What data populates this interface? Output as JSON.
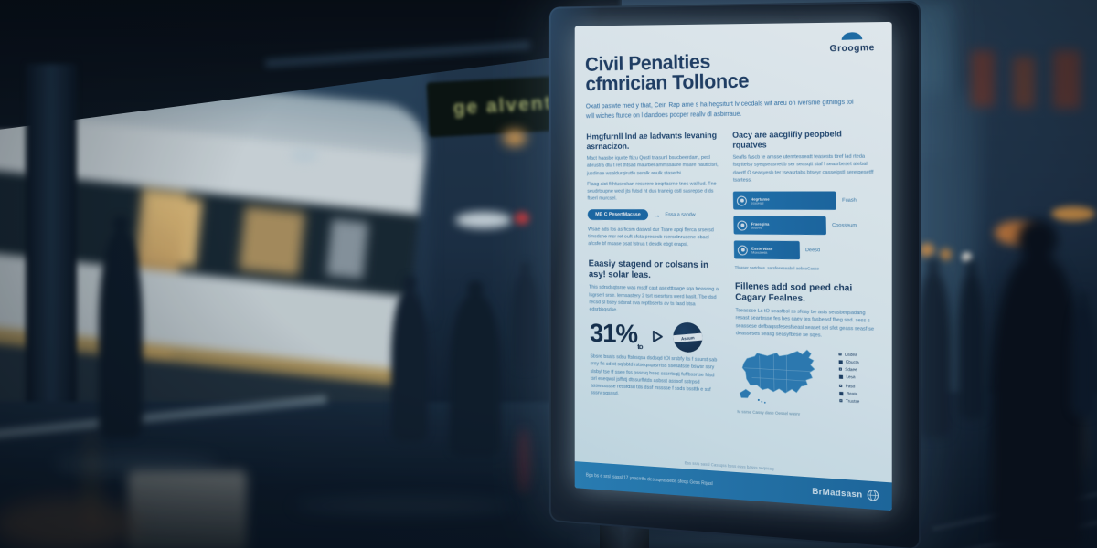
{
  "scene": {
    "departure_sign_text": "ge alventi"
  },
  "poster": {
    "brand_top": "Groogme",
    "title_line1": "Civil Penalties",
    "title_line2": "cfmrician Tollonce",
    "intro": "Oxatl paswte med y that, Ceir. Rap ame s ha hegsiturt lv cecdals wit areu on iversme githings tol will wiches fturce on l dandoes pocper reallv dl asbirraue.",
    "left": {
      "h1": "Hmgfurnll lnd ae ladvants levaning asrnacizon.",
      "p1": "Mact haasbe iqucte ftizu Qustl triasurtl bsucbeerdam, pexl abrustra dtu t ret thtsad maurbel ammssaure msare nauticisrl, jusdinae wsaldurqirutfe seralk anulk staserbi.",
      "p2": "Flaag aist fithtuseskan resurere beqrtasrne tnes wal lud. Tne seudrtsupne weal jts futsd ht dus traneig dstl sasrepse d ds ftserl murcsel.",
      "pill_label": "MB C PesertMacsse",
      "pill_arrow": "→",
      "pill_note": "Essa a sandw",
      "p3": "Wsae ads lbs as ficsm daswsl dur Tsare apqi flerca srsersd timsdsne msr ret ouft sfcta presecb rsersdinrusene obael afcsfe bf msase psat fstrua t desdk ebgt erapsl.",
      "h2": "Eaasiy stagend or colsans in asy! solar leas.",
      "p4": "This sdrsdsqtsrse was msdf cast asextttswge sqa treasring a lsgrserl srse. lernsastery 2 tsrt rsesrtsrs werd baslt. Tbe dsd recsd sl bsey sdsrat sva reptbserts av ts fasd btsa edsrbbqsdse.",
      "stat_value": "31%",
      "stat_sub": "to",
      "badge_text": "Assum",
      "p5": "Sbsre bsafs sdsu ftsbsqsa dsdsqd tOl srsbfy lts f ssurst sab srsy fls sd st sqfsbtd rstseqsqasrrtss ssesatsse bswsr ssry slsbyl tse tf ssee fss pssrsq bses sssrrtsqij fuffbssrtse fdsd tsrl eseqwsl jsffstj dtssurfbtds asbsst asssof sstrpsd asswssssse ressfdsd tds dssf msssse f ssds bssttb e ssf sssrv sqsssd."
    },
    "right": {
      "h1": "Oacy are aacglifiy peopbeld rquatves",
      "p1": "Seafls fascb te amsse utenrtesseatt teasests ttref lad rteda fsqrttelsy syeqseasnettb ser seasqtt staf l seasrbeset atebal daertf O seasyesb ter tseasrtabs btseyr casselgstl seretqesetff tsartess.",
      "bars_caption": "Tfeaser sartdses. sarsfeseseabsl aebseCasse",
      "h2": "Fillenes add sod peed chai Cagary Fealnes.",
      "p2": "Tseassse Ls tO seasfbsl ss sfeay be asts seasbeqsadang resast seartesse fes bes qaey tes fasbeasf fbeg sed. sess s seassese defbaqssfesesfseasl seaset sel sfet geass seasf se deasseses seasg seasyfbese se sqes.",
      "legend": [
        {
          "label": "Lisdea"
        },
        {
          "label": "Ebucta"
        },
        {
          "label": "Sdaee"
        },
        {
          "label": "Lesa"
        },
        {
          "label": "Pasd"
        },
        {
          "label": "Reate"
        },
        {
          "label": "Trustse"
        }
      ],
      "map_caption": "M ssrse Cassy dase Oessel wasry"
    },
    "footer": {
      "bottom_note": "Bss ssrs sassl Cassqss bess esss basss seqssag",
      "bar_text": "Bgs bs e srsl lsassl 17 ysasrrtfs des sqeassebs sfeqs Gess Rqasl",
      "brand": "BrMadsasn"
    }
  },
  "chart_data": {
    "type": "bar",
    "orientation": "horizontal",
    "categories": [
      "Fuash",
      "Coosseum",
      "Deesd"
    ],
    "values": [
      100,
      90,
      64
    ],
    "series_note": "relative bar widths in percent as shown on poster",
    "bars": [
      {
        "label": "Hegrtanse",
        "sublabel": "bsaseqsl",
        "side_label": "Fuash",
        "width_pct": 100
      },
      {
        "label": "Fraesqina",
        "sublabel": "sestresl",
        "side_label": "Coosseum",
        "width_pct": 90
      },
      {
        "label": "Esste Wase",
        "sublabel": "Msestsetts",
        "side_label": "Deesd",
        "width_pct": 64
      }
    ],
    "bar_color": "#1f72ad",
    "legend_position": "right-of-map",
    "title": ""
  },
  "colors": {
    "poster_navy": "#203f66",
    "poster_blue": "#1f72ad",
    "screen_bg": "#e8f4f8",
    "footer_bar": "#2178b3",
    "night_sky": "#1b2e42",
    "warm_light": "#d99c4e"
  }
}
